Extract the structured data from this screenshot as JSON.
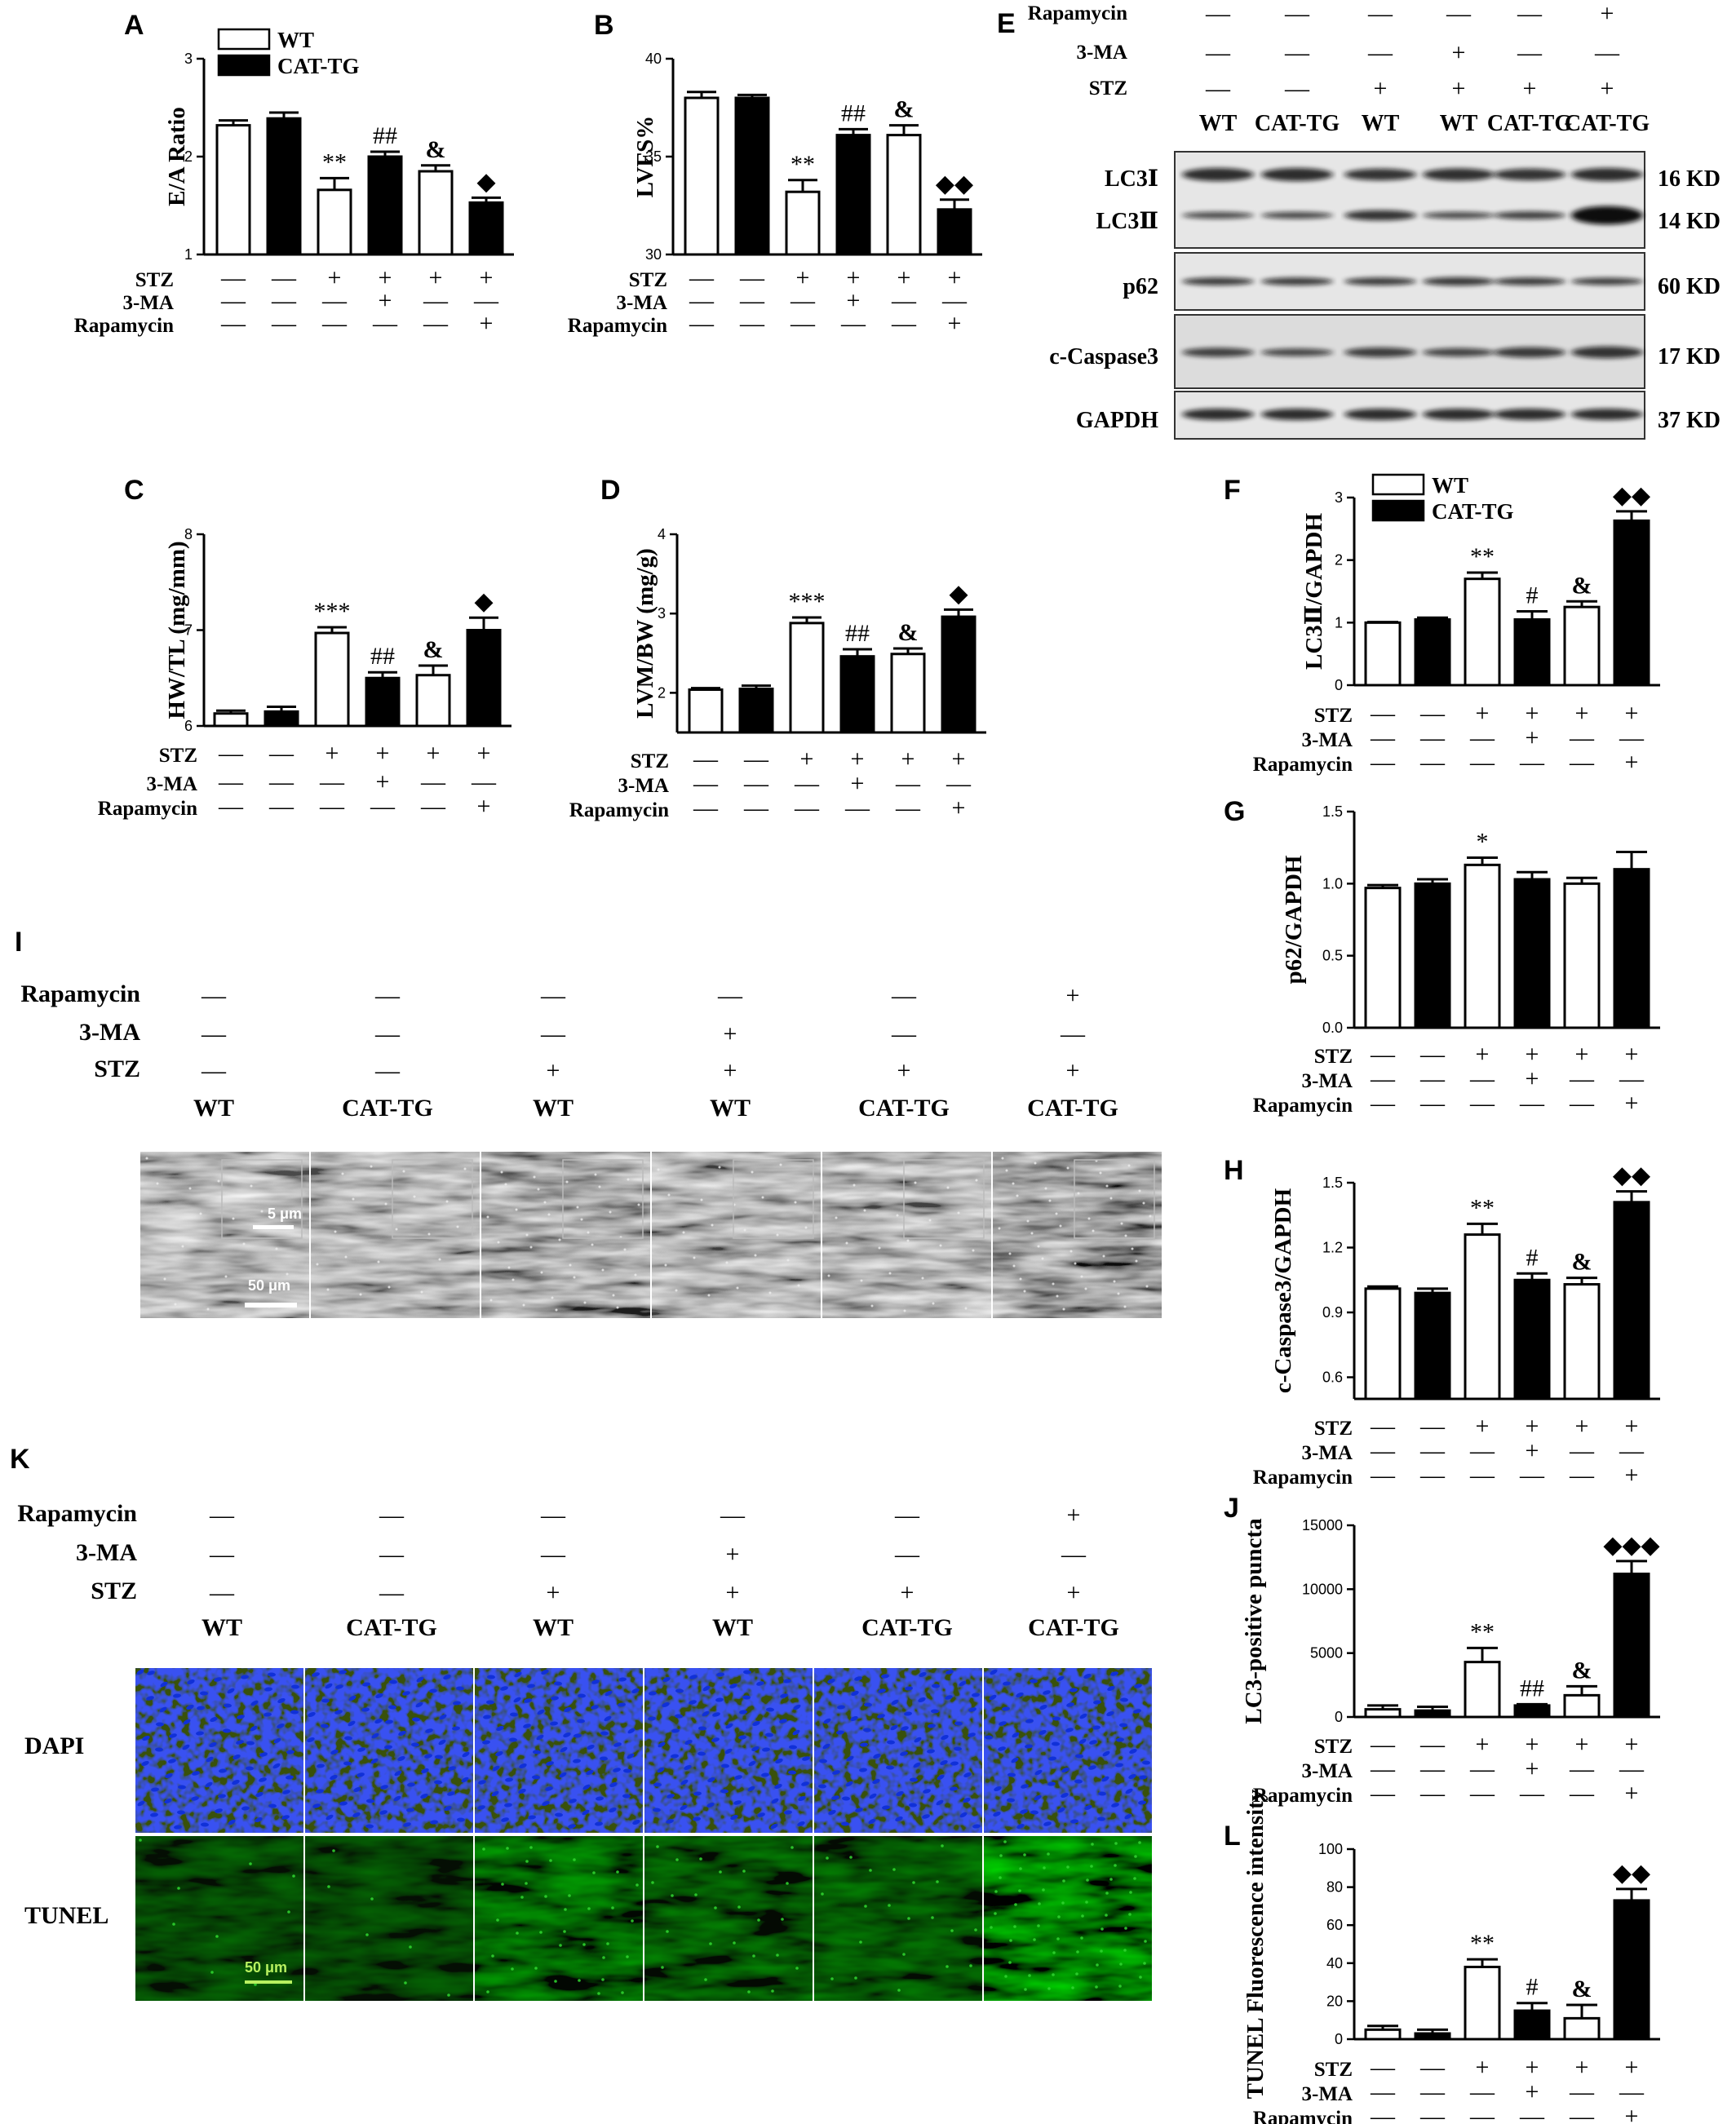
{
  "treatment_rows": [
    "STZ",
    "3-MA",
    "Rapamycin"
  ],
  "legend": {
    "wt": "WT",
    "cat": "CAT-TG"
  },
  "signs": {
    "stz": [
      "—",
      "—",
      "+",
      "+",
      "+",
      "+"
    ],
    "ma": [
      "—",
      "—",
      "—",
      "+",
      "—",
      "—"
    ],
    "rapa": [
      "—",
      "—",
      "—",
      "—",
      "—",
      "+"
    ]
  },
  "colors": {
    "wt_fill": "#ffffff",
    "cat_fill": "#000000",
    "dapi": "#1030d8",
    "tunel": "#2fd02f"
  },
  "chart_data": [
    {
      "panel": "A",
      "type": "bar",
      "ylabel": "E/A Ratio",
      "ylim": [
        1,
        3
      ],
      "yticks": [
        "1",
        "2",
        "3"
      ],
      "values": [
        2.32,
        2.39,
        1.66,
        2.0,
        1.85,
        1.53
      ],
      "errors": [
        0.05,
        0.06,
        0.12,
        0.05,
        0.06,
        0.05
      ],
      "annotations": [
        "",
        "",
        "**",
        "##",
        "&",
        "◆"
      ],
      "legend": "top"
    },
    {
      "panel": "B",
      "type": "bar",
      "ylabel": "LVFS%",
      "ylim": [
        30,
        40
      ],
      "yticks": [
        "30",
        "35",
        "40"
      ],
      "values": [
        38.0,
        38.0,
        33.2,
        36.1,
        36.1,
        32.3
      ],
      "errors": [
        0.3,
        0.15,
        0.6,
        0.3,
        0.5,
        0.5
      ],
      "annotations": [
        "",
        "",
        "**",
        "##",
        "&",
        "◆◆"
      ]
    },
    {
      "panel": "C",
      "type": "bar",
      "ylabel": "HW/TL (mg/mm)",
      "ylim": [
        6,
        8
      ],
      "yticks": [
        "6",
        "7",
        "8"
      ],
      "values": [
        6.13,
        6.15,
        6.97,
        6.5,
        6.53,
        7.0
      ],
      "errors": [
        0.03,
        0.05,
        0.06,
        0.06,
        0.1,
        0.13
      ],
      "annotations": [
        "",
        "",
        "***",
        "##",
        "&",
        "◆"
      ]
    },
    {
      "panel": "D",
      "type": "bar",
      "ylabel": "LVM/BW (mg/g)",
      "ylim": [
        1.5,
        4
      ],
      "yticks": [
        "2",
        "3",
        "4"
      ],
      "values": [
        2.04,
        2.05,
        2.88,
        2.46,
        2.49,
        2.96
      ],
      "errors": [
        0.02,
        0.04,
        0.07,
        0.09,
        0.07,
        0.09
      ],
      "annotations": [
        "",
        "",
        "***",
        "##",
        "&",
        "◆"
      ]
    },
    {
      "panel": "F",
      "type": "bar",
      "ylabel": "LC3Ⅱ/GAPDH",
      "ylim": [
        0,
        3
      ],
      "yticks": [
        "0",
        "1",
        "2",
        "3"
      ],
      "values": [
        1.0,
        1.05,
        1.7,
        1.05,
        1.25,
        2.63
      ],
      "errors": [
        0.01,
        0.03,
        0.1,
        0.13,
        0.09,
        0.15
      ],
      "annotations": [
        "",
        "",
        "**",
        "#",
        "&",
        "◆◆"
      ],
      "legend": "top"
    },
    {
      "panel": "G",
      "type": "bar",
      "ylabel": "p62/GAPDH",
      "ylim": [
        0,
        1.5
      ],
      "yticks": [
        "0.0",
        "0.5",
        "1.0",
        "1.5"
      ],
      "values": [
        0.97,
        1.0,
        1.13,
        1.03,
        1.0,
        1.1
      ],
      "errors": [
        0.02,
        0.03,
        0.05,
        0.05,
        0.04,
        0.12
      ],
      "annotations": [
        "",
        "",
        "*",
        "",
        "",
        ""
      ]
    },
    {
      "panel": "H",
      "type": "bar",
      "ylabel": "c-Caspase3/GAPDH",
      "ylim": [
        0.5,
        1.5
      ],
      "yticks": [
        "0.6",
        "0.9",
        "1.2",
        "1.5"
      ],
      "values": [
        1.01,
        0.99,
        1.26,
        1.05,
        1.03,
        1.41
      ],
      "errors": [
        0.01,
        0.02,
        0.05,
        0.03,
        0.03,
        0.05
      ],
      "annotations": [
        "",
        "",
        "**",
        "#",
        "&",
        "◆◆"
      ]
    },
    {
      "panel": "J",
      "type": "bar",
      "ylabel": "LC3-positive puncta",
      "ylim": [
        0,
        15000
      ],
      "yticks": [
        "0",
        "5000",
        "10000",
        "15000"
      ],
      "values": [
        600,
        500,
        4300,
        900,
        1700,
        11200
      ],
      "errors": [
        300,
        300,
        1100,
        100,
        700,
        1000
      ],
      "annotations": [
        "",
        "",
        "**",
        "##",
        "&",
        "◆◆◆"
      ]
    },
    {
      "panel": "L",
      "type": "bar",
      "ylabel": "TUNEL Fluorescence intensity",
      "ylim": [
        0,
        100
      ],
      "yticks": [
        "0",
        "20",
        "40",
        "60",
        "80",
        "100"
      ],
      "values": [
        5,
        3,
        38,
        15,
        11,
        73
      ],
      "errors": [
        2,
        2,
        4,
        4,
        7,
        6
      ],
      "annotations": [
        "",
        "",
        "**",
        "#",
        "&",
        "◆◆"
      ]
    }
  ],
  "blot": {
    "letter": "E",
    "groups": [
      "WT",
      "CAT-TG",
      "WT",
      "WT",
      "CAT-TG",
      "CAT-TG"
    ],
    "rows": [
      "Rapamycin",
      "3-MA",
      "STZ"
    ],
    "bands": [
      {
        "label": "LC3Ⅰ",
        "kd": "16 KD"
      },
      {
        "label": "LC3Ⅱ",
        "kd": "14 KD"
      },
      {
        "label": "p62",
        "kd": "60 KD"
      },
      {
        "label": "c-Caspase3",
        "kd": "17 KD"
      },
      {
        "label": "GAPDH",
        "kd": "37 KD"
      }
    ]
  },
  "panel_I": {
    "letter": "I",
    "rows": [
      "Rapamycin",
      "3-MA",
      "STZ"
    ],
    "groups": [
      "WT",
      "CAT-TG",
      "WT",
      "WT",
      "CAT-TG",
      "CAT-TG"
    ],
    "scale_small": "5 μm",
    "scale_large": "50 μm"
  },
  "panel_K": {
    "letter": "K",
    "rows": [
      "Rapamycin",
      "3-MA",
      "STZ"
    ],
    "groups": [
      "WT",
      "CAT-TG",
      "WT",
      "WT",
      "CAT-TG",
      "CAT-TG"
    ],
    "channels": [
      "DAPI",
      "TUNEL"
    ],
    "scale": "50 μm"
  }
}
